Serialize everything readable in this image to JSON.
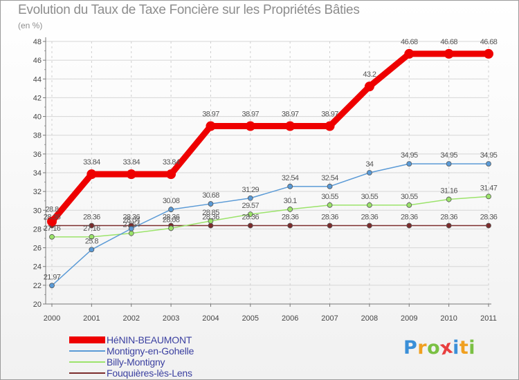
{
  "chart_data": {
    "type": "line",
    "title": "Evolution du Taux de Taxe Foncière sur les Propriétés Bâties",
    "unit_label": "(en %)",
    "x": [
      "2000",
      "2001",
      "2002",
      "2003",
      "2004",
      "2005",
      "2006",
      "2007",
      "2008",
      "2009",
      "2010",
      "2011"
    ],
    "ylim": [
      20,
      48
    ],
    "yticks": [
      20,
      22,
      24,
      26,
      28,
      30,
      32,
      34,
      36,
      38,
      40,
      42,
      44,
      46,
      48
    ],
    "series": [
      {
        "name": "HéNIN-BEAUMONT",
        "color": "#ee0000",
        "values": [
          28.8,
          33.84,
          33.84,
          33.84,
          38.97,
          38.97,
          38.97,
          38.97,
          43.2,
          46.68,
          46.68,
          46.68
        ],
        "labels": [
          "28.8",
          "33.84",
          "33.84",
          "33.84",
          "38.97",
          "38.97",
          "38.97",
          "38.97",
          "43.2",
          "46.68",
          "46.68",
          "46.68"
        ]
      },
      {
        "name": "Montigny-en-Gohelle",
        "color": "#5a9ad6",
        "values": [
          21.97,
          25.8,
          28.04,
          30.08,
          30.68,
          31.29,
          32.54,
          32.54,
          34,
          34.95,
          34.95,
          34.95
        ],
        "labels": [
          "21.97",
          "25.8",
          "28.04",
          "30.08",
          "30.68",
          "31.29",
          "32.54",
          "32.54",
          "34",
          "34.95",
          "34.95",
          "34.95"
        ]
      },
      {
        "name": "Billy-Montigny",
        "color": "#9be36a",
        "values": [
          27.16,
          27.16,
          27.54,
          28.08,
          28.85,
          29.57,
          30.1,
          30.55,
          30.55,
          30.55,
          31.16,
          31.47
        ],
        "labels": [
          "27.16",
          "27.16",
          "27.54",
          "28.08",
          "28.85",
          "29.57",
          "30.1",
          "30.55",
          "30.55",
          "30.55",
          "31.16",
          "31.47"
        ]
      },
      {
        "name": "Fouquières-lès-Lens",
        "color": "#7b2c2c",
        "values": [
          28.36,
          28.36,
          28.36,
          28.36,
          28.36,
          28.36,
          28.36,
          28.36,
          28.36,
          28.36,
          28.36,
          28.36
        ],
        "labels": [
          "28.36",
          "28.36",
          "28.36",
          "28.36",
          "28.36",
          "28.36",
          "28.36",
          "28.36",
          "28.36",
          "28.36",
          "28.36",
          "28.36"
        ]
      }
    ]
  },
  "logo": {
    "letters": [
      "P",
      "r",
      "o",
      "x",
      "i",
      "t",
      "i"
    ],
    "colors": [
      "#3a8fd8",
      "#f0a020",
      "#7ac043",
      "#e83f3f",
      "#3a8fd8",
      "#f0a020",
      "#7ac043"
    ]
  }
}
